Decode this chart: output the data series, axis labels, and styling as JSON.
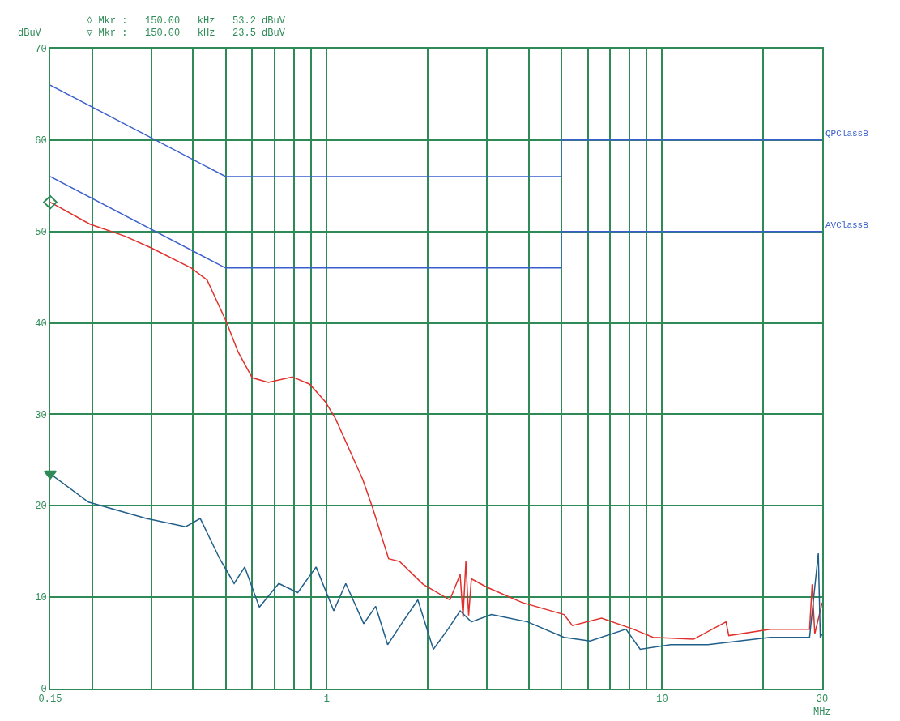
{
  "chart_data": {
    "type": "line",
    "ylabel": "dBuV",
    "xlabel": "MHz",
    "annotations": [
      "◊ Mkr :   150.00   kHz   53.2 dBuV",
      "▽ Mkr :   150.00   kHz   23.5 dBuV"
    ],
    "log": "x",
    "grid": true,
    "legend": false,
    "marker": "none",
    "line_style": "solid",
    "xlim": [
      0.15,
      30
    ],
    "ylim": [
      0,
      70
    ],
    "xticks": [
      0.15,
      {
        "value": 0.2,
        "label": null
      },
      {
        "value": 0.3,
        "label": null
      },
      {
        "value": 0.4,
        "label": null
      },
      {
        "value": 0.5,
        "label": null
      },
      {
        "value": 0.6,
        "label": null
      },
      {
        "value": 0.7,
        "label": null
      },
      {
        "value": 0.8,
        "label": null
      },
      {
        "value": 0.9,
        "label": null
      },
      1,
      {
        "value": 2,
        "label": null
      },
      {
        "value": 3,
        "label": null
      },
      {
        "value": 4,
        "label": null
      },
      {
        "value": 5,
        "label": null
      },
      {
        "value": 6,
        "label": null
      },
      {
        "value": 7,
        "label": null
      },
      {
        "value": 8,
        "label": null
      },
      {
        "value": 9,
        "label": null
      },
      10,
      {
        "value": 20,
        "label": null
      },
      30
    ],
    "yticks": [
      0,
      10,
      20,
      30,
      40,
      50,
      60,
      70
    ],
    "series": [
      {
        "name": "QPClassB",
        "color": "#3a5fcd",
        "x": [
          0.15,
          0.5,
          5,
          5,
          30
        ],
        "values": [
          66,
          56,
          56,
          60,
          60
        ]
      },
      {
        "name": "AVClassB",
        "color": "#3a5fcd",
        "x": [
          0.15,
          0.5,
          5,
          5,
          30
        ],
        "values": [
          56,
          46,
          46,
          50,
          50
        ]
      },
      {
        "color": "#e0302c",
        "x": [
          0.15,
          0.197,
          0.25,
          0.3,
          0.395,
          0.44,
          0.5,
          0.545,
          0.6,
          0.67,
          0.79,
          0.89,
          0.99,
          1.06,
          1.16,
          1.28,
          1.37,
          1.53,
          1.65,
          1.94,
          2.33,
          2.5,
          2.55,
          2.6,
          2.65,
          2.7,
          3.0,
          3.83,
          5.1,
          5.4,
          6.6,
          8.2,
          9.4,
          12.4,
          15.5,
          15.8,
          21,
          27.5,
          28,
          28.5,
          30
        ],
        "values": [
          53.2,
          50.8,
          49.5,
          48.2,
          46.0,
          44.7,
          40.3,
          36.8,
          34.0,
          33.5,
          34.1,
          33.3,
          31.4,
          29.6,
          26.4,
          22.9,
          19.8,
          14.2,
          13.9,
          11.4,
          9.7,
          12.5,
          7.8,
          13.9,
          8.0,
          12.0,
          11.1,
          9.4,
          8.1,
          6.9,
          7.7,
          6.5,
          5.6,
          5.4,
          7.3,
          5.8,
          6.5,
          6.5,
          11.4,
          6.0,
          9.4
        ]
      },
      {
        "color": "#1f5f8a",
        "x": [
          0.15,
          0.195,
          0.29,
          0.38,
          0.42,
          0.48,
          0.53,
          0.57,
          0.63,
          0.72,
          0.82,
          0.93,
          1.05,
          1.14,
          1.29,
          1.4,
          1.52,
          1.7,
          1.87,
          2.08,
          2.3,
          2.5,
          2.7,
          3.1,
          3.97,
          5.1,
          6.1,
          7.8,
          8.6,
          10.6,
          13.7,
          21,
          27.5,
          29.2,
          29.6,
          30
        ],
        "values": [
          23.5,
          20.4,
          18.6,
          17.7,
          18.6,
          14.2,
          11.5,
          13.3,
          8.9,
          11.5,
          10.5,
          13.3,
          8.5,
          11.5,
          7.1,
          9.0,
          4.8,
          7.5,
          9.7,
          4.3,
          6.5,
          8.5,
          7.3,
          8.1,
          7.3,
          5.6,
          5.2,
          6.5,
          4.3,
          4.8,
          4.8,
          5.6,
          5.6,
          14.8,
          5.6,
          6.0
        ]
      },
      {
        "type": "scatter",
        "marker": "diamond",
        "color": "#2e8b57",
        "x": [
          0.15
        ],
        "values": [
          53.2
        ]
      },
      {
        "type": "scatter",
        "marker": "triangle",
        "color": "#2e8b57",
        "x": [
          0.15
        ],
        "values": [
          23.5
        ]
      }
    ]
  }
}
